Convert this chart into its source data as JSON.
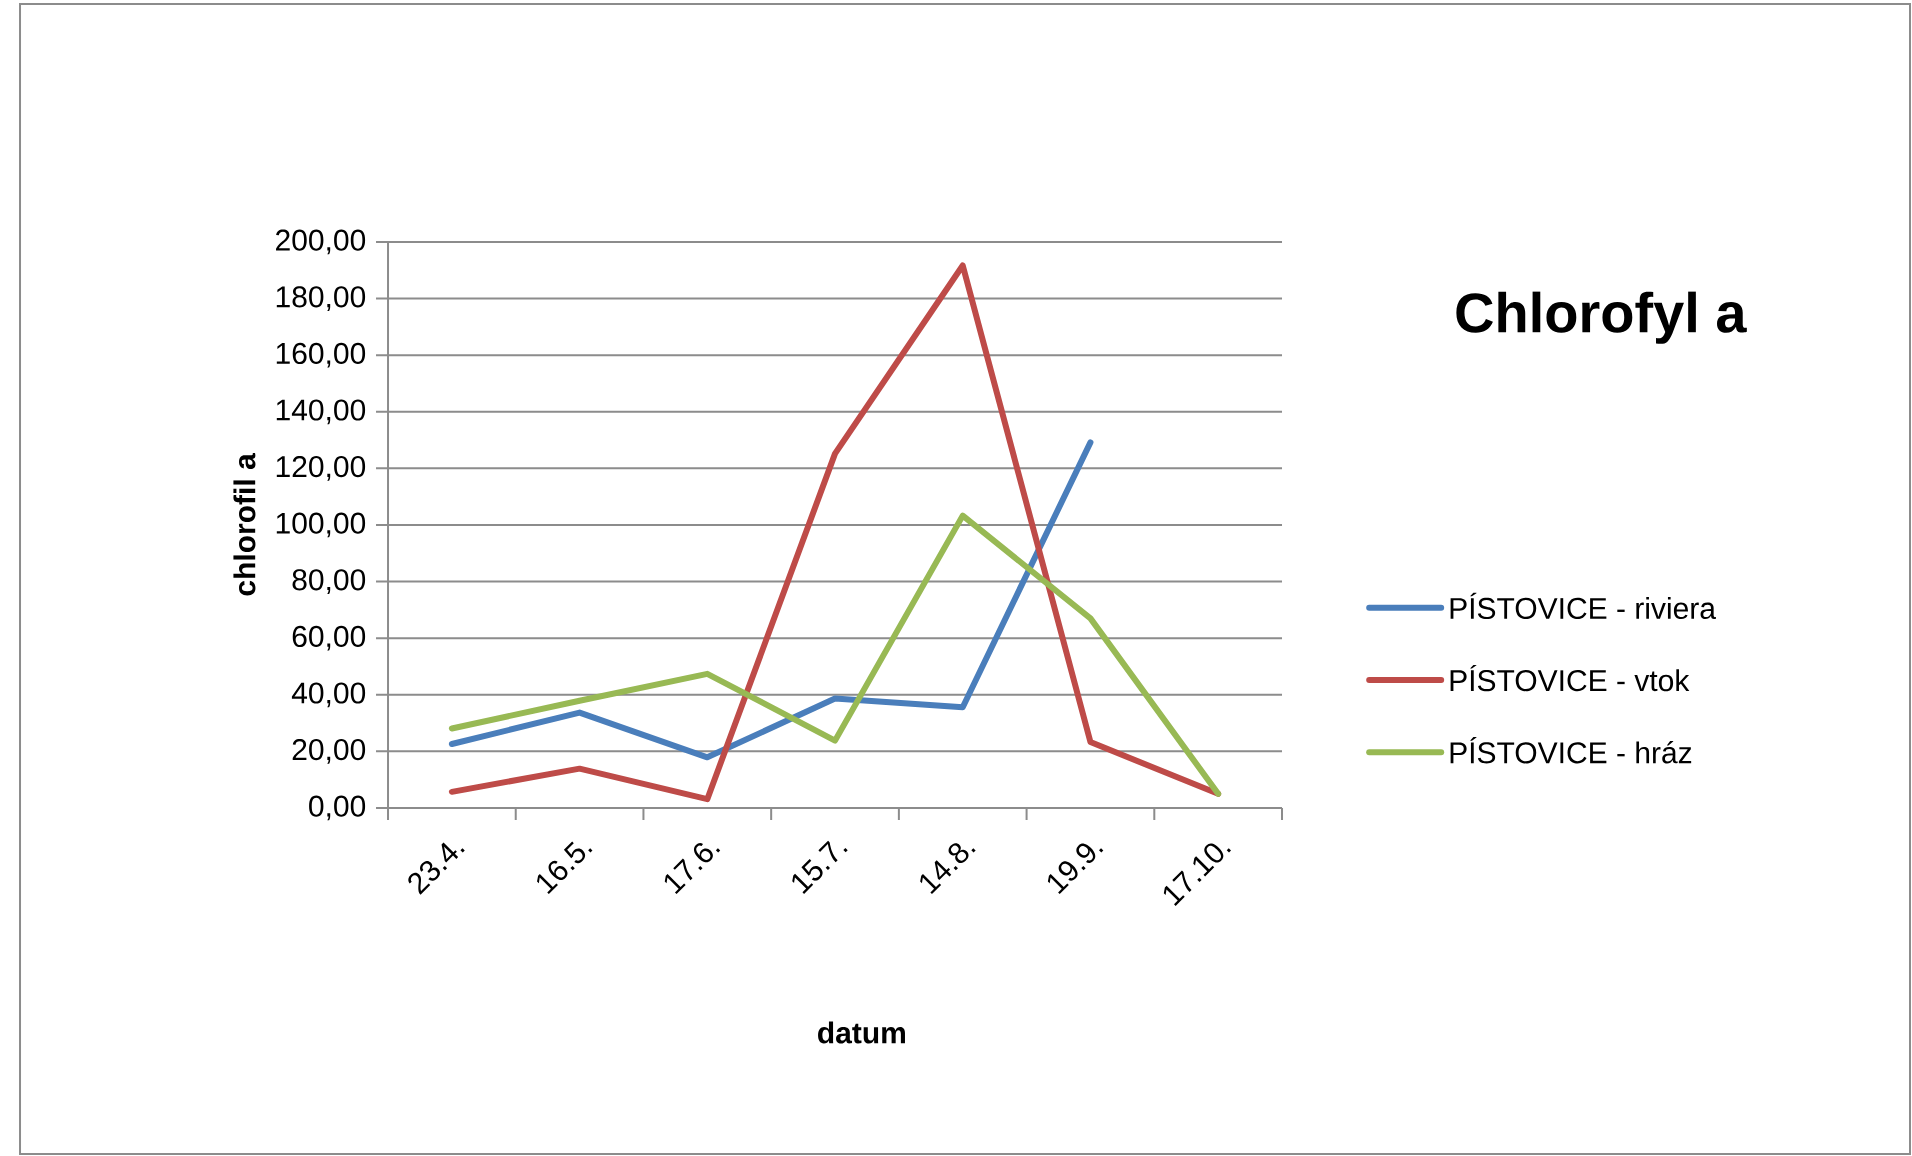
{
  "chart_data": {
    "type": "line",
    "title": "Chlorofyl a",
    "xlabel": "datum",
    "ylabel": "chlorofil a",
    "categories": [
      "23.4.",
      "16.5.",
      "17.6.",
      "15.7.",
      "14.8.",
      "19.9.",
      "17.10."
    ],
    "ylim": [
      0,
      200
    ],
    "yticks": [
      {
        "value": 0,
        "label": "0,00"
      },
      {
        "value": 20,
        "label": "20,00"
      },
      {
        "value": 40,
        "label": "40,00"
      },
      {
        "value": 60,
        "label": "60,00"
      },
      {
        "value": 80,
        "label": "80,00"
      },
      {
        "value": 100,
        "label": "100,00"
      },
      {
        "value": 120,
        "label": "120,00"
      },
      {
        "value": 140,
        "label": "140,00"
      },
      {
        "value": 160,
        "label": "160,00"
      },
      {
        "value": 180,
        "label": "180,00"
      },
      {
        "value": 200,
        "label": "200,00"
      }
    ],
    "grid": "y",
    "legend": "right",
    "marker": "none",
    "line_style": "solid",
    "series": [
      {
        "name": "PÍSTOVICE - riviera",
        "color": "#4a7ebb",
        "values": [
          22.6,
          33.7,
          17.9,
          38.7,
          35.6,
          129.2,
          null
        ]
      },
      {
        "name": "PÍSTOVICE - vtok",
        "color": "#be4b48",
        "values": [
          5.7,
          13.9,
          3.1,
          125.2,
          191.7,
          23.3,
          5.0
        ]
      },
      {
        "name": "PÍSTOVICE - hráz",
        "color": "#98b954",
        "values": [
          28.1,
          37.9,
          47.4,
          23.8,
          103.3,
          67.0,
          5.0
        ]
      }
    ]
  }
}
